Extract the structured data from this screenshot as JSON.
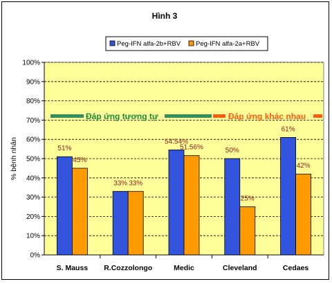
{
  "chart_data": {
    "type": "bar",
    "title": "Hình 3",
    "xlabel": "",
    "ylabel": "% bệnh nhân",
    "ylim": [
      0,
      100
    ],
    "yticks": [
      "0%",
      "10%",
      "20%",
      "30%",
      "40%",
      "50%",
      "60%",
      "70%",
      "80%",
      "90%",
      "100%"
    ],
    "grid": true,
    "legend_position": "top-right",
    "categories": [
      "S. Mauss",
      "R.Cozzolongo",
      "Medic",
      "Cleveland",
      "Cedaes"
    ],
    "series": [
      {
        "name": "Peg-IFN alfa-2b+RBV",
        "values": [
          51,
          33,
          54.54,
          50,
          61
        ],
        "labels": [
          "51%",
          "33%",
          "54.54%",
          "50%",
          "61%"
        ],
        "color": "#3355dd"
      },
      {
        "name": "Peg-IFN alfa-2a+RBV",
        "values": [
          45,
          33,
          51.56,
          25,
          42
        ],
        "labels": [
          "45%",
          "33%",
          "51.56%",
          "25%",
          "42%"
        ],
        "color": "#ff9a00"
      }
    ],
    "annotations": [
      {
        "text": "Đáp ứng tương tự",
        "color": "#1a8a3a",
        "line_color": "#2f8f5f"
      },
      {
        "text": "Đáp ứng khác nhau",
        "color": "#ff5a10",
        "line_color": "#ff5a10"
      }
    ],
    "plot_background": "#ffff99",
    "label_color": "#8b1a1a"
  }
}
